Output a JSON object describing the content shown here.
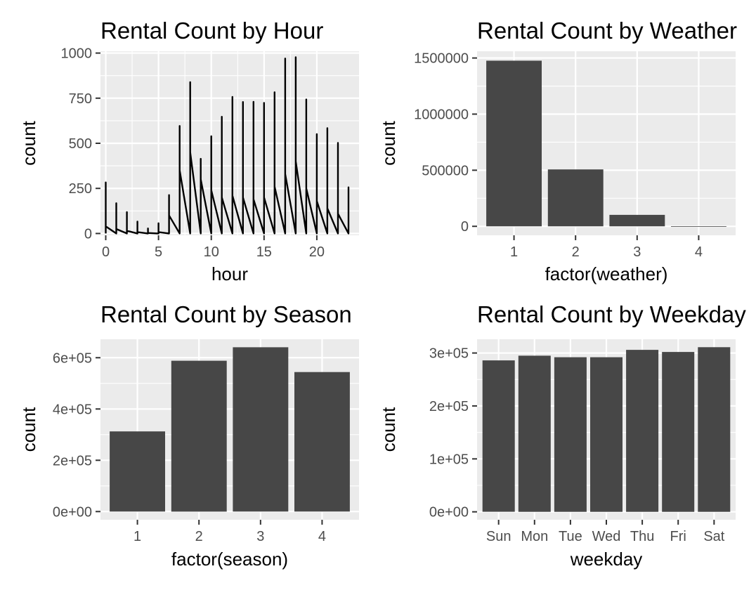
{
  "chart_data": [
    {
      "type": "line",
      "title": "Rental Count by Hour",
      "xlabel": "hour",
      "ylabel": "count",
      "xlim": [
        -0.5,
        24
      ],
      "ylim": [
        -10,
        1010
      ],
      "x_ticks": [
        0,
        5,
        10,
        15,
        20
      ],
      "y_ticks": [
        0,
        250,
        500,
        750,
        1000
      ],
      "x_tick_labels": [
        "0",
        "5",
        "10",
        "15",
        "20"
      ],
      "y_tick_labels": [
        "0",
        "250",
        "500",
        "750",
        "1000"
      ],
      "grid": true,
      "series": [
        {
          "x": [
            0,
            0,
            0,
            1,
            1,
            1,
            2,
            2,
            2,
            3,
            3,
            3,
            4,
            4,
            4,
            5,
            5,
            5,
            6,
            6,
            6,
            7,
            7,
            7,
            8,
            8,
            8,
            9,
            9,
            9,
            10,
            10,
            10,
            11,
            11,
            11,
            12,
            12,
            12,
            13,
            13,
            13,
            14,
            14,
            14,
            15,
            15,
            15,
            16,
            16,
            16,
            17,
            17,
            17,
            18,
            18,
            18,
            19,
            19,
            19,
            20,
            20,
            20,
            21,
            21,
            21,
            22,
            22,
            22,
            23,
            23,
            23
          ],
          "y": [
            0,
            283,
            40,
            0,
            168,
            25,
            0,
            119,
            15,
            0,
            66,
            8,
            0,
            28,
            3,
            0,
            57,
            8,
            0,
            213,
            100,
            0,
            596,
            350,
            0,
            839,
            450,
            0,
            414,
            300,
            0,
            539,
            240,
            0,
            647,
            200,
            0,
            757,
            210,
            0,
            729,
            200,
            0,
            730,
            190,
            0,
            724,
            200,
            0,
            783,
            260,
            0,
            970,
            330,
            0,
            977,
            400,
            0,
            743,
            250,
            0,
            551,
            180,
            0,
            584,
            140,
            0,
            502,
            110,
            0,
            256,
            80
          ]
        }
      ]
    },
    {
      "type": "bar",
      "title": "Rental Count by Weather",
      "xlabel": "factor(weather)",
      "ylabel": "count",
      "categories": [
        "1",
        "2",
        "3",
        "4"
      ],
      "values": [
        1476063,
        507160,
        102089,
        164
      ],
      "ylim": [
        -80000,
        1560000
      ],
      "y_ticks": [
        0,
        500000,
        1000000,
        1500000
      ],
      "y_tick_labels": [
        "0",
        "500000",
        "1000000",
        "1500000"
      ],
      "grid": true
    },
    {
      "type": "bar",
      "title": "Rental Count by Season",
      "xlabel": "factor(season)",
      "ylabel": "count",
      "categories": [
        "1",
        "2",
        "3",
        "4"
      ],
      "values": [
        312498,
        588282,
        640662,
        544034
      ],
      "ylim": [
        -32000,
        672000
      ],
      "y_ticks": [
        0,
        200000,
        400000,
        600000
      ],
      "y_tick_labels": [
        "0e+00",
        "2e+05",
        "4e+05",
        "6e+05"
      ],
      "grid": true
    },
    {
      "type": "bar",
      "title": "Rental Count by Weekday",
      "xlabel": "weekday",
      "ylabel": "count",
      "categories": [
        "Sun",
        "Mon",
        "Tue",
        "Wed",
        "Thu",
        "Fri",
        "Sat"
      ],
      "values": [
        286000,
        295000,
        292000,
        292000,
        306000,
        302000,
        311000
      ],
      "ylim": [
        -15000,
        326000
      ],
      "y_ticks": [
        0,
        100000,
        200000,
        300000
      ],
      "y_tick_labels": [
        "0e+00",
        "1e+05",
        "2e+05",
        "3e+05"
      ],
      "grid": true
    }
  ]
}
